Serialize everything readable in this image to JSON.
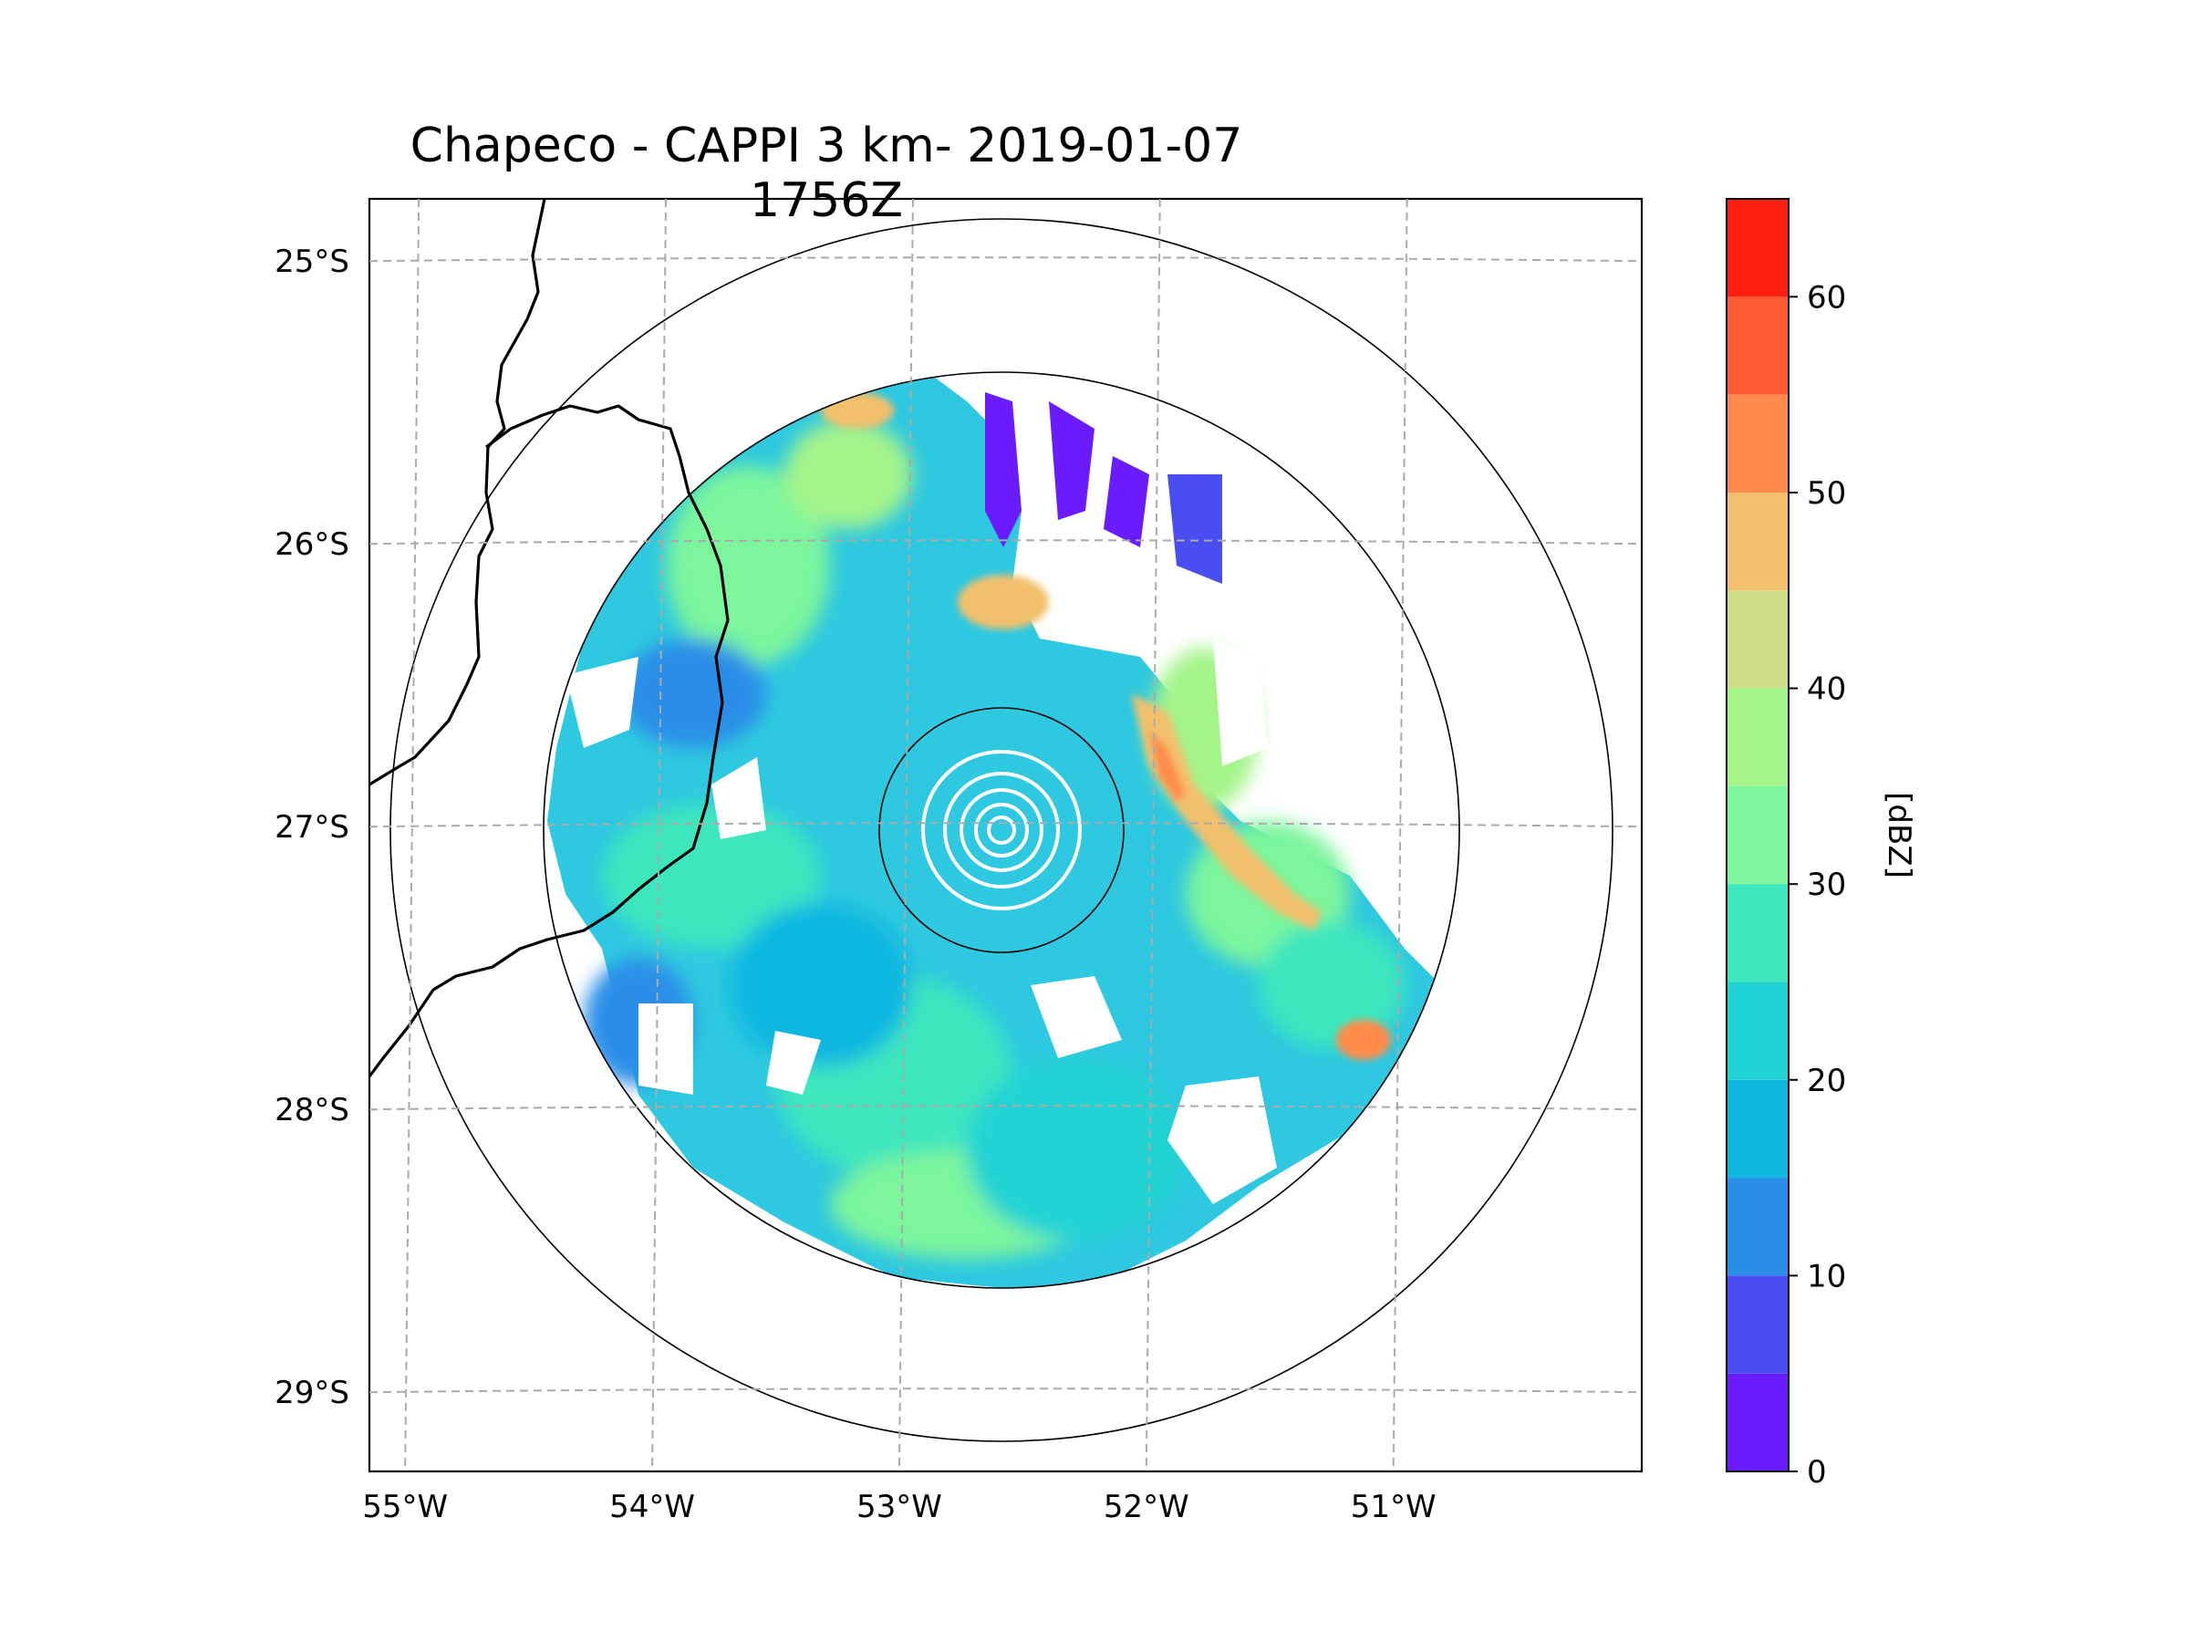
{
  "title": "Chapeco - CAPPI 3 km- 2019-01-07 1756Z",
  "map": {
    "lon_range": [
      -55.2,
      -50.05
    ],
    "lat_range": [
      -29.28,
      -24.78
    ],
    "radar_center": {
      "lon": -52.6,
      "lat": -27.02
    },
    "lon_ticks": [
      {
        "value": -55,
        "label": "55°W"
      },
      {
        "value": -54,
        "label": "54°W"
      },
      {
        "value": -53,
        "label": "53°W"
      },
      {
        "value": -52,
        "label": "52°W"
      },
      {
        "value": -51,
        "label": "51°W"
      }
    ],
    "lat_ticks": [
      {
        "value": -25,
        "label": "25°S"
      },
      {
        "value": -26,
        "label": "26°S"
      },
      {
        "value": -27,
        "label": "27°S"
      },
      {
        "value": -28,
        "label": "28°S"
      },
      {
        "value": -29,
        "label": "29°S"
      }
    ],
    "gridlines": "dashed gray",
    "colors": {
      "border": "#000000",
      "grid": "#aaaaaa",
      "range_ring": "#000000"
    }
  },
  "colorbar": {
    "label": "[dBZ]",
    "min": 0,
    "max": 65,
    "tick_values": [
      0,
      10,
      20,
      30,
      40,
      50,
      60
    ],
    "tick_labels": [
      "0",
      "10",
      "20",
      "30",
      "40",
      "50",
      "60"
    ],
    "levels": [
      {
        "from": 0,
        "to": 5,
        "color": "#6a1bff"
      },
      {
        "from": 5,
        "to": 10,
        "color": "#4a4ef0"
      },
      {
        "from": 10,
        "to": 15,
        "color": "#2a8ee8"
      },
      {
        "from": 15,
        "to": 20,
        "color": "#10b8e0"
      },
      {
        "from": 20,
        "to": 25,
        "color": "#22d3d3"
      },
      {
        "from": 25,
        "to": 30,
        "color": "#3de6bd"
      },
      {
        "from": 30,
        "to": 35,
        "color": "#7cf59c"
      },
      {
        "from": 35,
        "to": 40,
        "color": "#a4f48a"
      },
      {
        "from": 40,
        "to": 45,
        "color": "#cede86"
      },
      {
        "from": 45,
        "to": 50,
        "color": "#f2c06c"
      },
      {
        "from": 50,
        "to": 55,
        "color": "#ff8c4c"
      },
      {
        "from": 55,
        "to": 60,
        "color": "#ff5a32"
      },
      {
        "from": 60,
        "to": 65,
        "color": "#ff1e12"
      }
    ]
  }
}
